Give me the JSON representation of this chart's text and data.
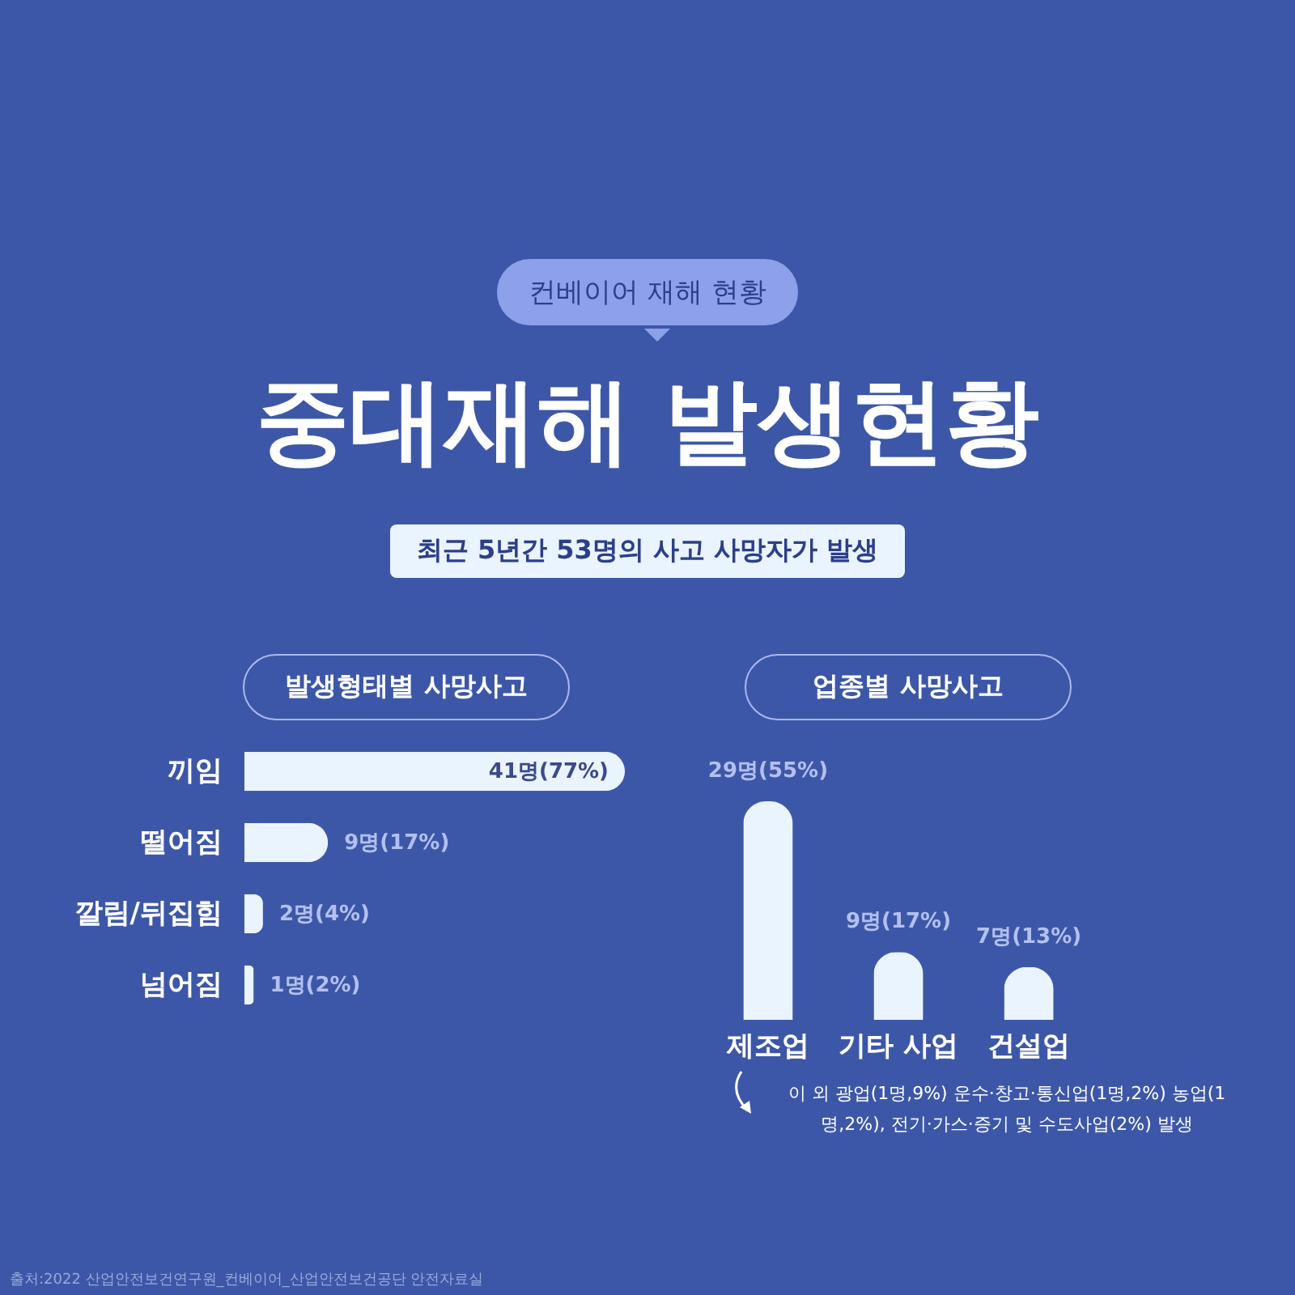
{
  "chart_data": [
    {
      "type": "other",
      "title": "중대재해 발생현황",
      "subtitle": "최근 5년간 53명의 사고 사망자가 발생",
      "annotations": [
        "컨베이어 재해 현황",
        "출처:2022 산업안전보건연구원_컨베이어_산업안전보건공단 안전자료실"
      ]
    },
    {
      "type": "bar",
      "orientation": "horizontal",
      "title": "발생형태별 사망사고",
      "categories": [
        "끼임",
        "떨어짐",
        "깔림/뒤집힘",
        "넘어짐"
      ],
      "values": [
        41,
        9,
        2,
        1
      ],
      "value_labels": [
        "41명(77%)",
        "9명(17%)",
        "2명(4%)",
        "1명(2%)"
      ],
      "color": "#eaf4fe"
    },
    {
      "type": "bar",
      "title": "업종별 사망사고",
      "categories": [
        "제조업",
        "기타 사업",
        "건설업"
      ],
      "values": [
        29,
        9,
        7
      ],
      "value_labels": [
        "29명(55%)",
        "9명(17%)",
        "7명(13%)"
      ],
      "color": "#eaf4fe",
      "annotations": [
        "이 외 광업(1명,9%) 운수·창고·통신업(1명,2%) 농업(1명,2%), 전기·가스·증기 및 수도사업(2%) 발생"
      ]
    }
  ]
}
